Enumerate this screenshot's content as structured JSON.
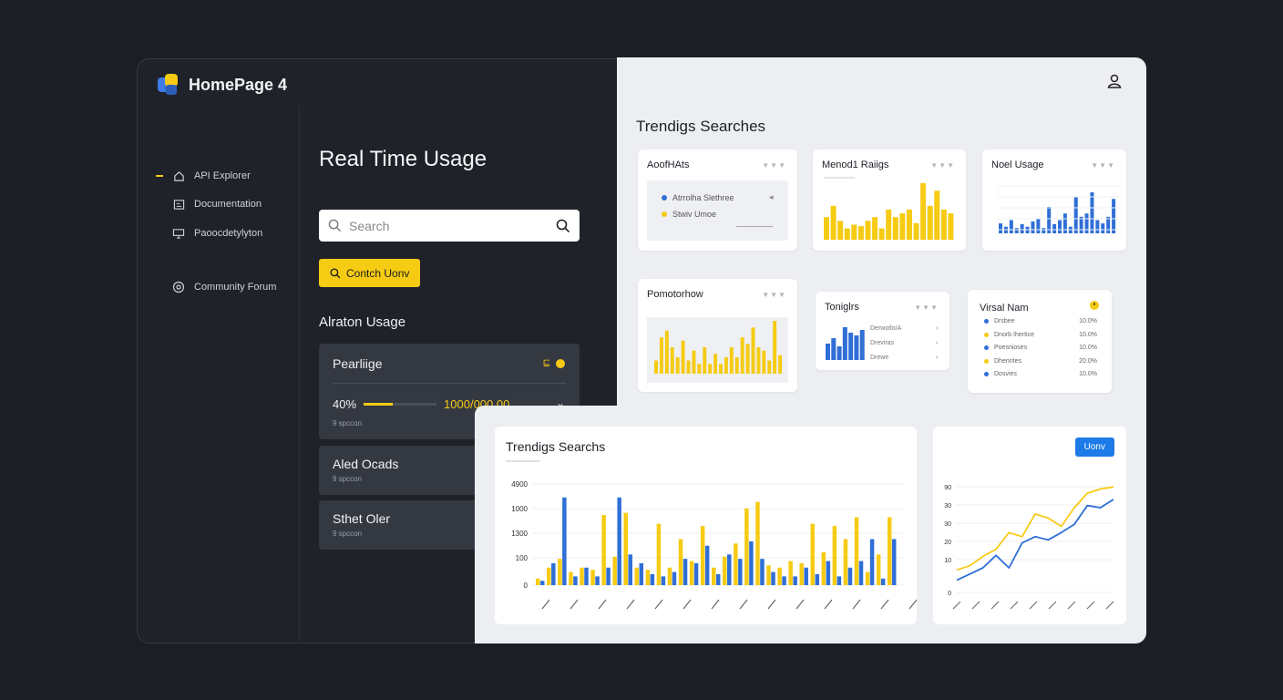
{
  "app": {
    "title": "HomePage 4"
  },
  "sidebar": {
    "items": [
      {
        "label": "API Explorer",
        "icon": "home-icon",
        "active": true
      },
      {
        "label": "Documentation",
        "icon": "document-icon",
        "active": false
      },
      {
        "label": "Paoocdetylyton",
        "icon": "monitor-icon",
        "active": false
      },
      {
        "label": "Community Forum",
        "icon": "circle-icon",
        "active": false
      }
    ]
  },
  "main": {
    "title": "Real Time Usage",
    "search": {
      "placeholder": "Search"
    },
    "action_button": "Contch Uonv",
    "section_title": "Alraton Usage",
    "cards": [
      {
        "title": "Pearliige",
        "percent": "40%",
        "progress": 0.4,
        "value": "1000/000.00",
        "sub": "9 spccon"
      },
      {
        "title": "Aled Ocads",
        "sub": "9 spccon"
      },
      {
        "title": "Sthet Oler",
        "sub": "9 spccon"
      }
    ]
  },
  "panel": {
    "title": "Trendigs Searches",
    "mini_cards": [
      {
        "title": "AoofHAts",
        "dots": "▼▼▼",
        "legend": [
          "Atrrolha Slethree",
          "Stwiv Umoe"
        ]
      },
      {
        "title": "Menod1 Raiigs",
        "dots": "▼▼▼"
      },
      {
        "title": "Noel Usage",
        "dots": "▼▼▼"
      },
      {
        "title": "Pomotorhow",
        "dots": "▼▼▼"
      },
      {
        "title": "Toniglrs",
        "dots": "▼▼▼",
        "rows": [
          "Derwotlo/A",
          "Dreviras",
          "Drewe"
        ]
      },
      {
        "title": "Virsal Nam",
        "rows": [
          {
            "label": "Drsbee",
            "value": "10.0%",
            "color": "#2f6fd6"
          },
          {
            "label": "Dnorb Ihertice",
            "value": "10.0%",
            "color": "#f6cb14"
          },
          {
            "label": "Poesnioses",
            "value": "10.0%",
            "color": "#2f6fd6"
          },
          {
            "label": "Dhenrites",
            "value": "20.0%",
            "color": "#f6cb14"
          },
          {
            "label": "Dosvies",
            "value": "10.0%",
            "color": "#2f6fd6"
          }
        ]
      }
    ],
    "big_chart": {
      "title": "Trendigs Searchs"
    },
    "line_chart": {
      "button": "Uonv"
    }
  },
  "colors": {
    "accent_yellow": "#f6cb14",
    "accent_blue": "#2f6fd6"
  },
  "chart_data": [
    {
      "type": "bar",
      "title": "Trendigs Searchs",
      "ylabels": [
        "4900",
        "1000",
        "1300",
        "100",
        "0"
      ],
      "series": [
        {
          "color": "#f6cb14",
          "values": [
            3,
            8,
            12,
            6,
            8,
            7,
            32,
            13,
            33,
            8,
            7,
            28,
            8,
            21,
            11,
            27,
            8,
            13,
            19,
            35,
            38,
            9,
            8,
            11,
            10,
            28,
            15,
            27,
            21,
            31,
            6,
            14,
            31
          ]
        },
        {
          "color": "#2f6fd6",
          "values": [
            2,
            10,
            40,
            4,
            8,
            4,
            8,
            40,
            14,
            10,
            5,
            4,
            6,
            12,
            10,
            18,
            5,
            14,
            12,
            20,
            12,
            6,
            4,
            4,
            8,
            5,
            11,
            4,
            8,
            11,
            21,
            3,
            21
          ]
        }
      ],
      "ylim": [
        0,
        120
      ]
    },
    {
      "type": "line",
      "ylabels": [
        "90",
        "30",
        "30",
        "20",
        "10",
        "0"
      ],
      "series": [
        {
          "color": "#f6cb14",
          "values": [
            20,
            24,
            33,
            40,
            56,
            52,
            74,
            70,
            62,
            80,
            94,
            98,
            100
          ]
        },
        {
          "color": "#2f6fd6",
          "values": [
            10,
            16,
            22,
            34,
            22,
            46,
            52,
            49,
            56,
            64,
            82,
            80,
            88
          ]
        }
      ],
      "ylim": [
        0,
        120
      ]
    },
    {
      "type": "bar",
      "title": "Menod1 Raiigs",
      "values": [
        30,
        45,
        25,
        15,
        20,
        18,
        25,
        30,
        15,
        40,
        30,
        35,
        40,
        22,
        75,
        45,
        65,
        40,
        35
      ],
      "color": "#f6cb14"
    },
    {
      "type": "bar",
      "title": "Noel Usage",
      "values": [
        15,
        10,
        20,
        8,
        14,
        10,
        18,
        22,
        8,
        40,
        14,
        20,
        30,
        10,
        55,
        25,
        30,
        62,
        20,
        15,
        25,
        52
      ],
      "color": "#2f6fd6"
    },
    {
      "type": "bar",
      "title": "Pomotorhow",
      "values": [
        20,
        55,
        65,
        40,
        25,
        50,
        20,
        35,
        15,
        40,
        15,
        30,
        15,
        25,
        40,
        25,
        55,
        45,
        70,
        40,
        35,
        20,
        80,
        28
      ],
      "color": "#f6cb14"
    },
    {
      "type": "bar",
      "title": "Toniglrs",
      "values": [
        30,
        40,
        25,
        60,
        50,
        45,
        55
      ],
      "color": "#2f6fd6"
    }
  ]
}
